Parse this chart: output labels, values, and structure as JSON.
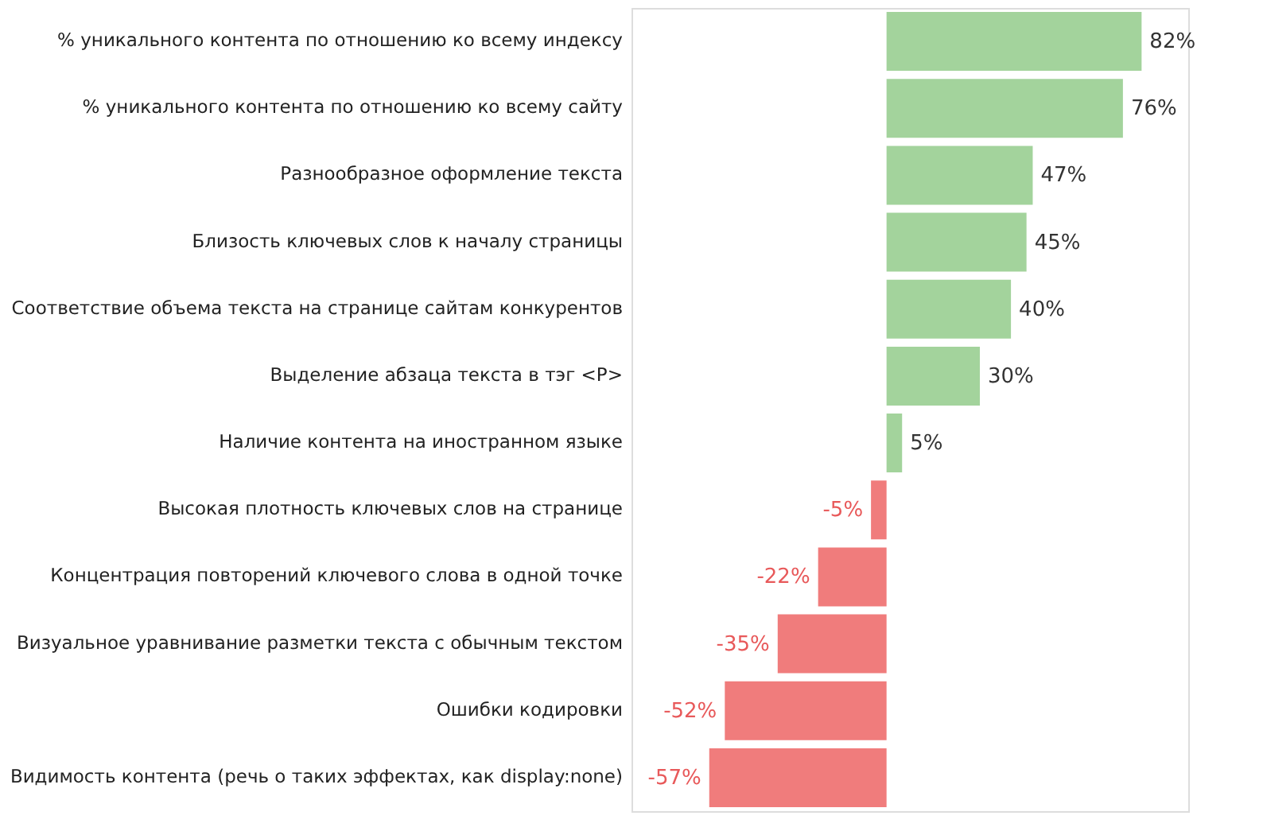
{
  "chart_data": {
    "type": "bar",
    "orientation": "horizontal",
    "categories": [
      "% уникального контента по отношению ко всему индексу",
      "% уникального контента по отношению ко всему сайту",
      "Разнообразное оформление текста",
      "Близость ключевых слов к началу страницы",
      "Соответствие объема текста на странице сайтам конкурентов",
      "Выделение абзаца текста в тэг <P>",
      "Наличие контента на иностранном языке",
      "Высокая плотность ключевых слов на странице",
      "Концентрация повторений ключевого слова в одной точке",
      "Визуальное уравнивание разметки текста с обычным текстом",
      "Ошибки кодировки",
      "Видимость контента (речь о таких эффектах, как display:none)"
    ],
    "values": [
      82,
      76,
      47,
      45,
      40,
      30,
      5,
      -5,
      -22,
      -35,
      -52,
      -57
    ],
    "value_labels": [
      "82%",
      "76%",
      "47%",
      "45%",
      "40%",
      "30%",
      "5%",
      "-5%",
      "-22%",
      "-35%",
      "-52%",
      "-57%"
    ],
    "colors": [
      "#a3d39c",
      "#a3d39c",
      "#a3d39c",
      "#a3d39c",
      "#a3d39c",
      "#a3d39c",
      "#a3d39c",
      "#f07c7c",
      "#f07c7c",
      "#f07c7c",
      "#f07c7c",
      "#f07c7c"
    ],
    "xlim": [
      -82,
      97
    ],
    "tick_labels": "y"
  }
}
